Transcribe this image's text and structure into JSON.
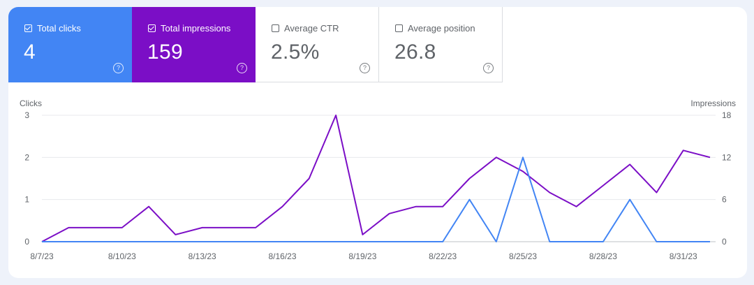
{
  "metrics": [
    {
      "label": "Total clicks",
      "value": "4",
      "selected": true
    },
    {
      "label": "Total impressions",
      "value": "159",
      "selected": true
    },
    {
      "label": "Average CTR",
      "value": "2.5%",
      "selected": false
    },
    {
      "label": "Average position",
      "value": "26.8",
      "selected": false
    }
  ],
  "colors": {
    "clicks": "#4285f4",
    "impressions": "#7b0ec6",
    "grid": "#e8eaed",
    "text": "#5f6368"
  },
  "chart_data": {
    "type": "line",
    "ylabel_left": "Clicks",
    "ylabel_right": "Impressions",
    "y_left_ticks": [
      "0",
      "1",
      "2",
      "3"
    ],
    "y_right_ticks": [
      "0",
      "6",
      "12",
      "18"
    ],
    "ylim_left": [
      0,
      3
    ],
    "ylim_right": [
      0,
      18
    ],
    "x_tick_labels": [
      "8/7/23",
      "8/10/23",
      "8/13/23",
      "8/16/23",
      "8/19/23",
      "8/22/23",
      "8/25/23",
      "8/28/23",
      "8/31/23"
    ],
    "x": [
      "8/7/23",
      "8/8/23",
      "8/9/23",
      "8/10/23",
      "8/11/23",
      "8/12/23",
      "8/13/23",
      "8/14/23",
      "8/15/23",
      "8/16/23",
      "8/17/23",
      "8/18/23",
      "8/19/23",
      "8/20/23",
      "8/21/23",
      "8/22/23",
      "8/23/23",
      "8/24/23",
      "8/25/23",
      "8/26/23",
      "8/27/23",
      "8/28/23",
      "8/29/23",
      "8/30/23",
      "8/31/23",
      "9/1/23"
    ],
    "series": [
      {
        "name": "Clicks",
        "axis": "left",
        "values": [
          0,
          0,
          0,
          0,
          0,
          0,
          0,
          0,
          0,
          0,
          0,
          0,
          0,
          0,
          0,
          0,
          1,
          0,
          2,
          0,
          0,
          0,
          1,
          0,
          0,
          0
        ]
      },
      {
        "name": "Impressions",
        "axis": "right",
        "values": [
          0,
          2,
          2,
          2,
          5,
          1,
          2,
          2,
          2,
          5,
          9,
          18,
          1,
          4,
          5,
          5,
          9,
          12,
          10,
          7,
          5,
          8,
          11,
          7,
          13,
          12
        ]
      }
    ],
    "grid": true
  }
}
